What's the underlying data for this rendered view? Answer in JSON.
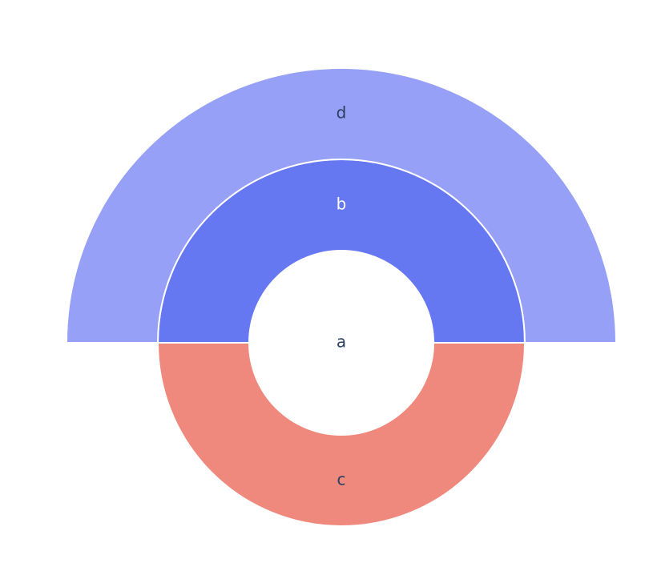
{
  "chart_data": {
    "type": "sunburst",
    "nodes": [
      {
        "label": "a",
        "parent": null,
        "value": 2,
        "color": "#ffffff"
      },
      {
        "label": "b",
        "parent": "a",
        "value": 1,
        "color": "#6677f2"
      },
      {
        "label": "c",
        "parent": "a",
        "value": 1,
        "color": "#f0897d"
      },
      {
        "label": "d",
        "parent": "b",
        "value": 1,
        "color": "#95a0f6"
      }
    ]
  }
}
